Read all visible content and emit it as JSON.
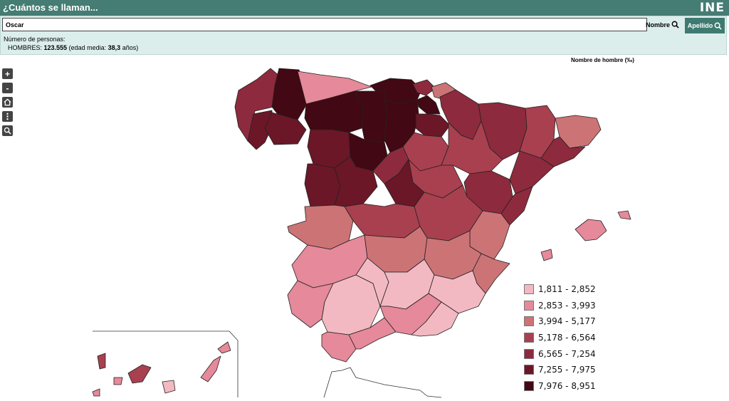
{
  "header": {
    "title": "¿Cuántos se llaman...",
    "logo": "INE"
  },
  "search": {
    "value": "Oscar",
    "nombre_label": "Nombre",
    "apellido_label": "Apellido"
  },
  "info": {
    "persons_label": "Número de personas:",
    "men_label": "HOMBRES:",
    "men_count": "123.555",
    "age_prefix": "(edad media:",
    "age_value": "38,3",
    "age_suffix": "años)"
  },
  "map": {
    "label": "Nombre de hombre (‰)",
    "zoom_controls": [
      "plus-icon",
      "minus-icon",
      "home-icon",
      "more-icon",
      "search-icon"
    ]
  },
  "legend": [
    {
      "label": "1,811 - 2,852",
      "color": "#f3b9c2"
    },
    {
      "label": "2,853 - 3,993",
      "color": "#e6899a"
    },
    {
      "label": "3,994 - 5,177",
      "color": "#cc7376"
    },
    {
      "label": "5,178 - 6,564",
      "color": "#a9404f"
    },
    {
      "label": "6,565 - 7,254",
      "color": "#8e2a3d"
    },
    {
      "label": "7,255 - 7,975",
      "color": "#6b1728"
    },
    {
      "label": "7,976 - 8,951",
      "color": "#420814"
    }
  ],
  "colors": {
    "header": "#457c74",
    "panel": "#dceeec"
  }
}
